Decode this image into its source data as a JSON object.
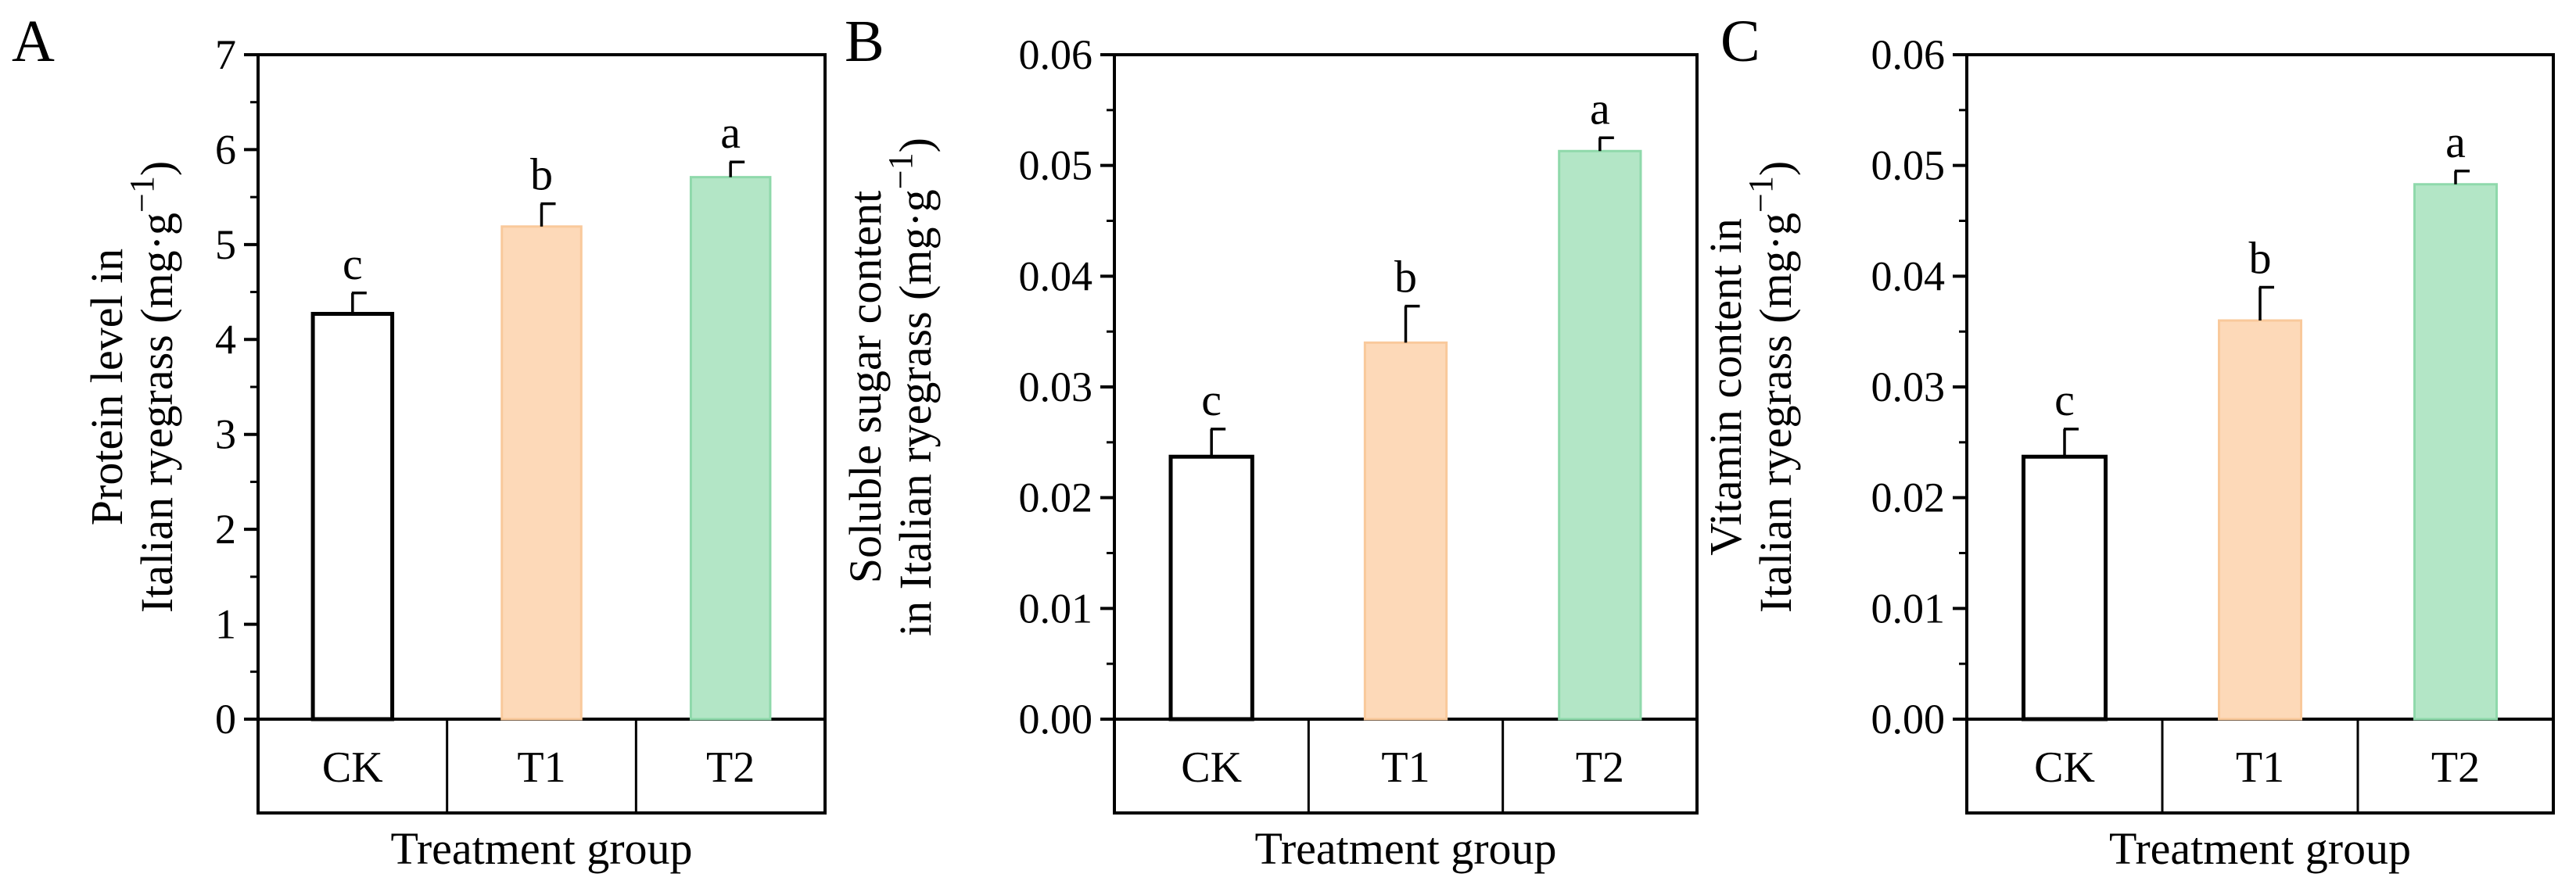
{
  "chart_data": [
    {
      "panel": "A",
      "type": "bar",
      "categories": [
        "CK",
        "T1",
        "T2"
      ],
      "values": [
        4.27,
        5.19,
        5.71
      ],
      "errors": [
        0.22,
        0.24,
        0.16
      ],
      "significance": [
        "c",
        "b",
        "a"
      ],
      "ylabel_line1": "Protein level in",
      "ylabel_line2_main": "Italian ryegrass (mg·g",
      "ylabel_sup": "−1",
      "ylabel_close": ")",
      "xlabel": "Treatment group",
      "ylim": [
        0,
        7
      ],
      "yticks": [
        0,
        1,
        2,
        3,
        4,
        5,
        6,
        7
      ],
      "ytick_labels": [
        "0",
        "1",
        "2",
        "3",
        "4",
        "5",
        "6",
        "7"
      ]
    },
    {
      "panel": "B",
      "type": "bar",
      "categories": [
        "CK",
        "T1",
        "T2"
      ],
      "values": [
        0.0237,
        0.034,
        0.0513
      ],
      "errors": [
        0.0025,
        0.0033,
        0.0012
      ],
      "significance": [
        "c",
        "b",
        "a"
      ],
      "ylabel_line1": "Soluble sugar content",
      "ylabel_line2_main": "in Italian ryegrass (mg·g",
      "ylabel_sup": "−1",
      "ylabel_close": ")",
      "xlabel": "Treatment group",
      "ylim": [
        0,
        0.06
      ],
      "yticks": [
        0,
        0.01,
        0.02,
        0.03,
        0.04,
        0.05,
        0.06
      ],
      "ytick_labels": [
        "0.00",
        "0.01",
        "0.02",
        "0.03",
        "0.04",
        "0.05",
        "0.06"
      ]
    },
    {
      "panel": "C",
      "type": "bar",
      "categories": [
        "CK",
        "T1",
        "T2"
      ],
      "values": [
        0.0237,
        0.036,
        0.0483
      ],
      "errors": [
        0.0025,
        0.003,
        0.0012
      ],
      "significance": [
        "c",
        "b",
        "a"
      ],
      "ylabel_line1": "Vitamin content in",
      "ylabel_line2_main": "Italian ryegrass (mg·g",
      "ylabel_sup": "−1",
      "ylabel_close": ")",
      "xlabel": "Treatment group",
      "ylim": [
        0,
        0.06
      ],
      "yticks": [
        0,
        0.01,
        0.02,
        0.03,
        0.04,
        0.05,
        0.06
      ],
      "ytick_labels": [
        "0.00",
        "0.01",
        "0.02",
        "0.03",
        "0.04",
        "0.05",
        "0.06"
      ]
    }
  ],
  "colors": {
    "CK_fill": "#ffffff",
    "CK_stroke": "#000000",
    "T1_fill": "#fdd9b8",
    "T1_stroke": "#f9c99b",
    "T2_fill": "#b3e6c6",
    "T2_stroke": "#8fd9ab",
    "axis": "#000000"
  }
}
